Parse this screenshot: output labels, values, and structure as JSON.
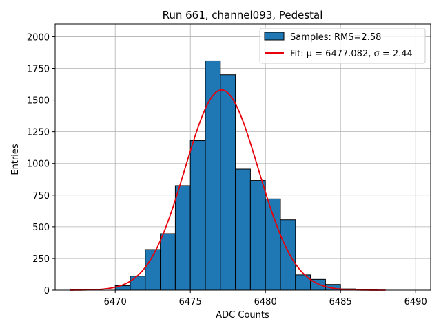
{
  "chart_data": {
    "type": "bar",
    "title": "Run 661, channel093, Pedestal",
    "xlabel": "ADC Counts",
    "ylabel": "Entries",
    "xlim": [
      6466,
      6491
    ],
    "ylim": [
      0,
      2100
    ],
    "xticks": [
      6470,
      6475,
      6480,
      6485,
      6490
    ],
    "yticks": [
      0,
      250,
      500,
      750,
      1000,
      1250,
      1500,
      1750,
      2000
    ],
    "grid": true,
    "legend_position": "top-right",
    "histogram": {
      "name": "Samples: RMS=2.58",
      "color": "#1f77b4",
      "bin_edges": [
        6470,
        6471,
        6472,
        6473,
        6474,
        6475,
        6476,
        6477,
        6478,
        6479,
        6480,
        6481,
        6482,
        6483,
        6484,
        6485,
        6486
      ],
      "counts": [
        35,
        110,
        320,
        445,
        825,
        1180,
        1810,
        1700,
        955,
        865,
        720,
        555,
        120,
        85,
        45,
        10
      ]
    },
    "fit": {
      "name": "Fit: μ = 6477.082, σ = 2.44",
      "color": "#e8000b",
      "mu": 6477.082,
      "sigma": 2.44,
      "amplitude": 1580,
      "x_range": [
        6467,
        6488
      ]
    }
  }
}
